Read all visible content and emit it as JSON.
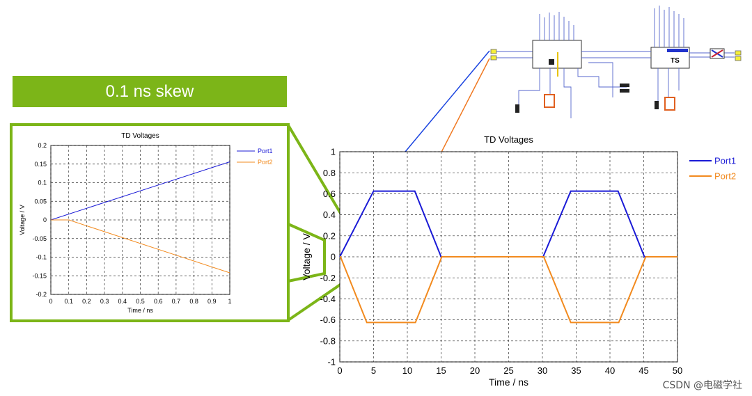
{
  "banner": {
    "label": "0.1 ns skew"
  },
  "watermark": "CSDN @电磁学社",
  "schematic_labels": {
    "block2": "TS"
  },
  "colors": {
    "port1": "#1a1ad6",
    "port2": "#f28a1e",
    "accent": "#7cb518"
  },
  "chart_data": [
    {
      "type": "line",
      "title": "TD Voltages",
      "xlabel": "Time / ns",
      "ylabel": "Voltage / V",
      "xlim": [
        0,
        50
      ],
      "ylim": [
        -1,
        1
      ],
      "xticks": [
        "0",
        "5",
        "10",
        "15",
        "20",
        "25",
        "30",
        "35",
        "40",
        "45",
        "50"
      ],
      "yticks": [
        "1",
        "0.8",
        "0.6",
        "0.4",
        "0.2",
        "0",
        "-0.2",
        "-0.4",
        "-0.6",
        "-0.8",
        "-1"
      ],
      "grid": true,
      "legend_position": "right",
      "series": [
        {
          "name": "Port1",
          "x": [
            0,
            5,
            11.1,
            15,
            30.1,
            34.2,
            41.2,
            45.1,
            50
          ],
          "y": [
            0,
            0.625,
            0.625,
            0,
            0,
            0.625,
            0.625,
            0,
            0
          ]
        },
        {
          "name": "Port2",
          "x": [
            0,
            0.1,
            4,
            11.2,
            15.1,
            30.2,
            34.2,
            41.3,
            45.3,
            50
          ],
          "y": [
            0,
            0,
            -0.625,
            -0.625,
            0,
            0,
            -0.625,
            -0.625,
            0,
            0
          ]
        }
      ]
    },
    {
      "type": "line",
      "title": "TD Voltages",
      "xlabel": "Time / ns",
      "ylabel": "Voltage / V",
      "xlim": [
        0,
        1
      ],
      "ylim": [
        -0.2,
        0.2
      ],
      "xticks": [
        "0",
        "0.1",
        "0.2",
        "0.3",
        "0.4",
        "0.5",
        "0.6",
        "0.7",
        "0.8",
        "0.9",
        "1"
      ],
      "yticks": [
        "0.2",
        "0.15",
        "0.1",
        "0.05",
        "0",
        "-0.05",
        "-0.1",
        "-0.15",
        "-0.2"
      ],
      "grid": true,
      "legend_position": "right",
      "series": [
        {
          "name": "Port1",
          "x": [
            0,
            1
          ],
          "y": [
            0,
            0.156
          ]
        },
        {
          "name": "Port2",
          "x": [
            0,
            0.1,
            1
          ],
          "y": [
            0,
            0,
            -0.142
          ]
        }
      ]
    }
  ]
}
